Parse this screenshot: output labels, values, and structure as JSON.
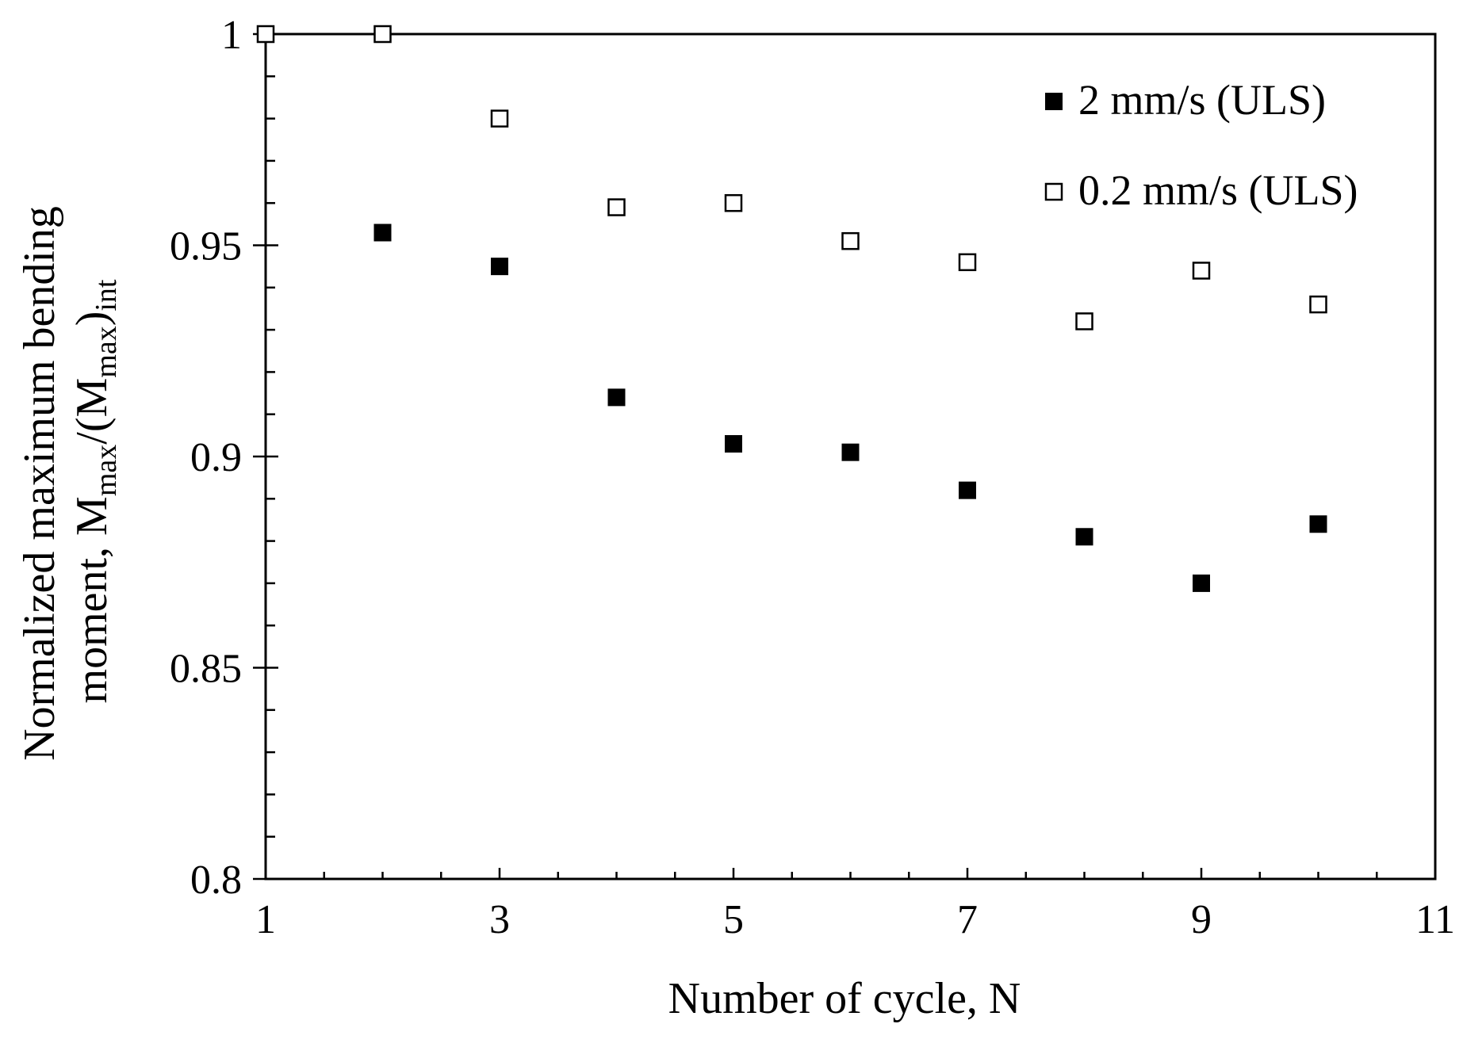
{
  "chart_data": {
    "type": "scatter",
    "title": "",
    "xlabel": "Number of cycle, N",
    "ylabel": {
      "line1": "Normalized maximum bending",
      "line2_prefix": "moment, M",
      "line2_sub1": "max",
      "line2_mid": "/(M",
      "line2_sub2": "max",
      "line2_paren": ")",
      "line2_sub3": "int"
    },
    "xlim": [
      1,
      11
    ],
    "ylim": [
      0.8,
      1.0
    ],
    "x_ticks": [
      1,
      3,
      5,
      7,
      9,
      11
    ],
    "x_tick_labels": [
      "1",
      "3",
      "5",
      "7",
      "9",
      "11"
    ],
    "x_minor_step": 0.5,
    "y_ticks": [
      0.8,
      0.85,
      0.9,
      0.95,
      1.0
    ],
    "y_tick_labels": [
      "0.8",
      "0.85",
      "0.9",
      "0.95",
      "1"
    ],
    "y_minor_step": 0.01,
    "grid": false,
    "legend_position": "top-right",
    "series": [
      {
        "name": "2 mm/s (ULS)",
        "marker": "filled-square",
        "color": "#000000",
        "x": [
          1,
          2,
          3,
          4,
          5,
          6,
          7,
          8,
          9,
          10
        ],
        "values": [
          1.0,
          0.953,
          0.945,
          0.914,
          0.903,
          0.901,
          0.892,
          0.881,
          0.87,
          0.884
        ]
      },
      {
        "name": "0.2 mm/s (ULS)",
        "marker": "open-square",
        "color": "#000000",
        "x": [
          1,
          2,
          3,
          4,
          5,
          6,
          7,
          8,
          9,
          10
        ],
        "values": [
          1.0,
          1.0,
          0.98,
          0.959,
          0.96,
          0.951,
          0.946,
          0.932,
          0.944,
          0.936
        ]
      }
    ]
  }
}
